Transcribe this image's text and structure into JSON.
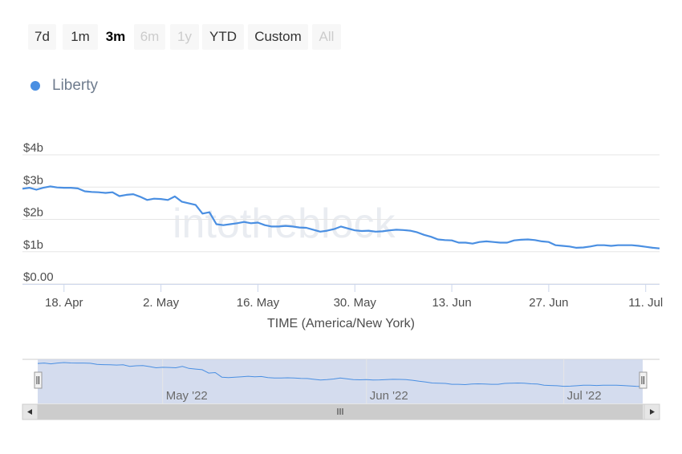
{
  "range_selector": {
    "buttons": [
      {
        "label": "7d",
        "state": "normal"
      },
      {
        "label": "1m",
        "state": "normal"
      },
      {
        "label": "3m",
        "state": "active"
      },
      {
        "label": "6m",
        "state": "disabled"
      },
      {
        "label": "1y",
        "state": "disabled"
      },
      {
        "label": "YTD",
        "state": "normal"
      },
      {
        "label": "Custom",
        "state": "normal"
      },
      {
        "label": "All",
        "state": "disabled"
      }
    ]
  },
  "watermark": "intotheblock",
  "colors": {
    "series": "#4a8fe2",
    "navigator_fill": "#ccd6eb",
    "grid": "#e6e6e6"
  },
  "chart_data": {
    "type": "line",
    "title": "",
    "xlabel": "TIME (America/New York)",
    "ylabel": "",
    "ylim": [
      0,
      4
    ],
    "y_ticks": [
      "$0.00",
      "$1b",
      "$2b",
      "$3b",
      "$4b"
    ],
    "x_ticks": [
      "18. Apr",
      "2. May",
      "16. May",
      "30. May",
      "13. Jun",
      "27. Jun",
      "11. Jul"
    ],
    "legend_position": "top-left",
    "grid": true,
    "series": [
      {
        "name": "Liberty",
        "x": [
          "2022-04-12",
          "2022-04-13",
          "2022-04-14",
          "2022-04-15",
          "2022-04-16",
          "2022-04-17",
          "2022-04-18",
          "2022-04-19",
          "2022-04-20",
          "2022-04-21",
          "2022-04-22",
          "2022-04-23",
          "2022-04-24",
          "2022-04-25",
          "2022-04-26",
          "2022-04-27",
          "2022-04-28",
          "2022-04-29",
          "2022-04-30",
          "2022-05-01",
          "2022-05-02",
          "2022-05-03",
          "2022-05-04",
          "2022-05-05",
          "2022-05-06",
          "2022-05-07",
          "2022-05-08",
          "2022-05-09",
          "2022-05-10",
          "2022-05-11",
          "2022-05-12",
          "2022-05-13",
          "2022-05-14",
          "2022-05-15",
          "2022-05-16",
          "2022-05-17",
          "2022-05-18",
          "2022-05-19",
          "2022-05-20",
          "2022-05-21",
          "2022-05-22",
          "2022-05-23",
          "2022-05-24",
          "2022-05-25",
          "2022-05-26",
          "2022-05-27",
          "2022-05-28",
          "2022-05-29",
          "2022-05-30",
          "2022-05-31",
          "2022-06-01",
          "2022-06-02",
          "2022-06-03",
          "2022-06-04",
          "2022-06-05",
          "2022-06-06",
          "2022-06-07",
          "2022-06-08",
          "2022-06-09",
          "2022-06-10",
          "2022-06-11",
          "2022-06-12",
          "2022-06-13",
          "2022-06-14",
          "2022-06-15",
          "2022-06-16",
          "2022-06-17",
          "2022-06-18",
          "2022-06-19",
          "2022-06-20",
          "2022-06-21",
          "2022-06-22",
          "2022-06-23",
          "2022-06-24",
          "2022-06-25",
          "2022-06-26",
          "2022-06-27",
          "2022-06-28",
          "2022-06-29",
          "2022-06-30",
          "2022-07-01",
          "2022-07-02",
          "2022-07-03",
          "2022-07-04",
          "2022-07-05",
          "2022-07-06",
          "2022-07-07",
          "2022-07-08",
          "2022-07-09",
          "2022-07-10",
          "2022-07-11",
          "2022-07-12",
          "2022-07-13"
        ],
        "values": [
          2.95,
          2.98,
          2.92,
          2.98,
          3.02,
          2.99,
          2.98,
          2.98,
          2.96,
          2.87,
          2.85,
          2.84,
          2.82,
          2.84,
          2.72,
          2.76,
          2.78,
          2.7,
          2.6,
          2.64,
          2.63,
          2.6,
          2.71,
          2.55,
          2.5,
          2.45,
          2.18,
          2.22,
          1.85,
          1.82,
          1.85,
          1.88,
          1.92,
          1.88,
          1.9,
          1.82,
          1.78,
          1.78,
          1.8,
          1.78,
          1.75,
          1.74,
          1.68,
          1.62,
          1.65,
          1.7,
          1.78,
          1.72,
          1.66,
          1.64,
          1.65,
          1.62,
          1.63,
          1.66,
          1.68,
          1.67,
          1.65,
          1.6,
          1.52,
          1.46,
          1.38,
          1.36,
          1.35,
          1.28,
          1.28,
          1.25,
          1.3,
          1.32,
          1.3,
          1.28,
          1.28,
          1.35,
          1.37,
          1.38,
          1.36,
          1.32,
          1.3,
          1.2,
          1.18,
          1.16,
          1.12,
          1.13,
          1.16,
          1.2,
          1.2,
          1.18,
          1.2,
          1.2,
          1.2,
          1.18,
          1.15,
          1.12,
          1.1
        ]
      }
    ],
    "navigator": {
      "labels": [
        "May '22",
        "Jun '22",
        "Jul '22"
      ]
    }
  }
}
